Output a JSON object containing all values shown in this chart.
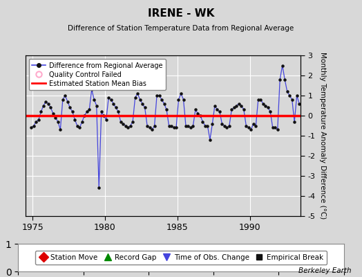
{
  "title": "IRENE - WK",
  "subtitle": "Difference of Station Temperature Data from Regional Average",
  "ylabel": "Monthly Temperature Anomaly Difference (°C)",
  "xlabel_ticks": [
    1975,
    1980,
    1985,
    1990
  ],
  "ylim": [
    -5,
    3
  ],
  "yticks": [
    -5,
    -4,
    -3,
    -2,
    -1,
    0,
    1,
    2,
    3
  ],
  "xlim": [
    1974.5,
    1993.5
  ],
  "bias_value": 0.0,
  "background_color": "#d8d8d8",
  "plot_bg_color": "#d8d8d8",
  "line_color": "#4444dd",
  "marker_color": "#111111",
  "bias_color": "#ff0000",
  "footer": "Berkeley Earth",
  "legend1_labels": [
    "Difference from Regional Average",
    "Quality Control Failed",
    "Estimated Station Mean Bias"
  ],
  "legend2_labels": [
    "Station Move",
    "Record Gap",
    "Time of Obs. Change",
    "Empirical Break"
  ],
  "data": [
    1974.917,
    -0.6,
    1975.083,
    -0.5,
    1975.25,
    -0.3,
    1975.417,
    -0.2,
    1975.583,
    0.2,
    1975.75,
    0.5,
    1975.917,
    0.7,
    1976.083,
    0.6,
    1976.25,
    0.4,
    1976.417,
    0.1,
    1976.583,
    -0.1,
    1976.75,
    -0.3,
    1976.917,
    -0.7,
    1977.083,
    0.8,
    1977.25,
    1.0,
    1977.417,
    0.7,
    1977.583,
    0.4,
    1977.75,
    0.2,
    1977.917,
    -0.2,
    1978.083,
    -0.5,
    1978.25,
    -0.6,
    1978.417,
    -0.3,
    1978.583,
    0.0,
    1978.75,
    0.2,
    1978.917,
    0.3,
    1979.083,
    1.3,
    1979.25,
    0.8,
    1979.417,
    0.5,
    1979.583,
    -3.6,
    1979.75,
    0.2,
    1979.917,
    0.0,
    1980.083,
    -0.2,
    1980.25,
    0.9,
    1980.417,
    0.8,
    1980.583,
    0.6,
    1980.75,
    0.4,
    1980.917,
    0.2,
    1981.083,
    -0.3,
    1981.25,
    -0.4,
    1981.417,
    -0.5,
    1981.583,
    -0.6,
    1981.75,
    -0.5,
    1981.917,
    -0.3,
    1982.083,
    0.9,
    1982.25,
    1.1,
    1982.417,
    0.8,
    1982.583,
    0.6,
    1982.75,
    0.4,
    1982.917,
    -0.5,
    1983.083,
    -0.6,
    1983.25,
    -0.7,
    1983.417,
    -0.5,
    1983.583,
    1.0,
    1983.75,
    1.0,
    1983.917,
    0.8,
    1984.083,
    0.6,
    1984.25,
    0.3,
    1984.417,
    -0.5,
    1984.583,
    -0.5,
    1984.75,
    -0.6,
    1984.917,
    -0.6,
    1985.083,
    0.8,
    1985.25,
    1.1,
    1985.417,
    0.8,
    1985.583,
    -0.5,
    1985.75,
    -0.5,
    1985.917,
    -0.6,
    1986.083,
    -0.5,
    1986.25,
    0.3,
    1986.417,
    0.1,
    1986.583,
    0.0,
    1986.75,
    -0.3,
    1986.917,
    -0.5,
    1987.083,
    -0.5,
    1987.25,
    -1.2,
    1987.417,
    -0.4,
    1987.583,
    0.5,
    1987.75,
    0.3,
    1987.917,
    0.2,
    1988.083,
    -0.4,
    1988.25,
    -0.5,
    1988.417,
    -0.6,
    1988.583,
    -0.5,
    1988.75,
    0.3,
    1988.917,
    0.4,
    1989.083,
    0.5,
    1989.25,
    0.6,
    1989.417,
    0.5,
    1989.583,
    0.3,
    1989.75,
    -0.5,
    1989.917,
    -0.6,
    1990.083,
    -0.7,
    1990.25,
    -0.4,
    1990.417,
    -0.5,
    1990.583,
    0.8,
    1990.75,
    0.8,
    1990.917,
    0.6,
    1991.083,
    0.5,
    1991.25,
    0.4,
    1991.417,
    0.2,
    1991.583,
    -0.6,
    1991.75,
    -0.6,
    1991.917,
    -0.7,
    1992.083,
    1.8,
    1992.25,
    2.5,
    1992.417,
    1.8,
    1992.583,
    1.2,
    1992.75,
    1.0,
    1992.917,
    0.8,
    1993.083,
    -0.3,
    1993.25,
    1.0,
    1993.417,
    0.6
  ]
}
